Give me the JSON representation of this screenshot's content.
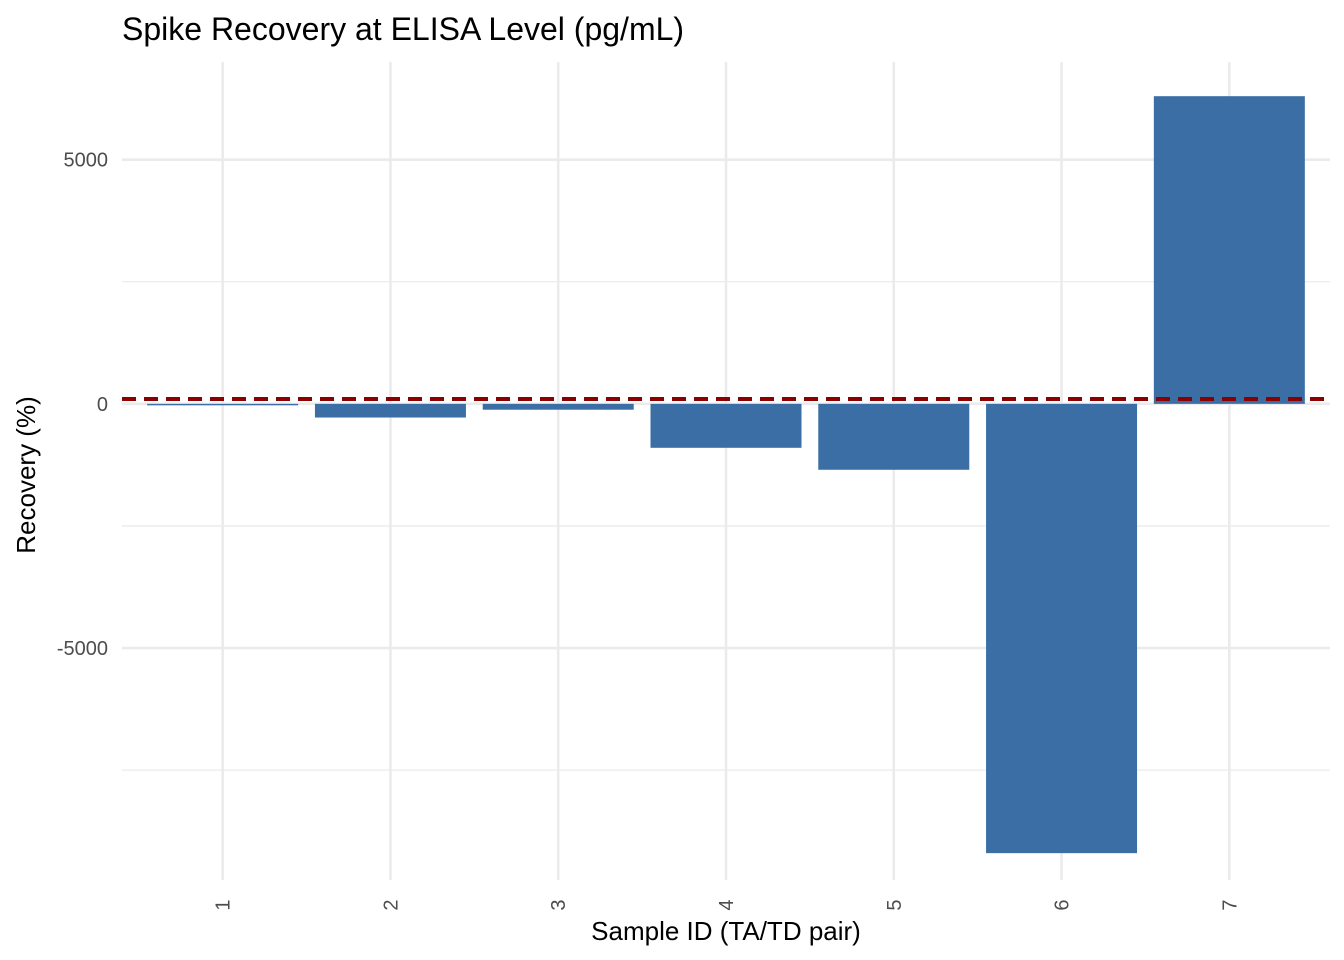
{
  "chart_data": {
    "type": "bar",
    "title": "Spike Recovery at ELISA Level (pg/mL)",
    "xlabel": "Sample ID (TA/TD pair)",
    "ylabel": "Recovery (%)",
    "categories": [
      "1",
      "2",
      "3",
      "4",
      "5",
      "6",
      "7"
    ],
    "values": [
      -30,
      -280,
      -120,
      -900,
      -1350,
      -9200,
      6300
    ],
    "ylim": [
      -9750,
      7000
    ],
    "y_major_ticks": [
      -5000,
      0,
      5000
    ],
    "y_tick_labels": [
      "-5000",
      "0",
      "5000"
    ],
    "y_minor_ticks": [
      -7500,
      -2500,
      2500
    ],
    "reference_line": {
      "value": 100,
      "style": "dashed",
      "color": "#8b0000"
    },
    "bar_color": "#3a6ea5",
    "grid": true,
    "legend": "none"
  }
}
